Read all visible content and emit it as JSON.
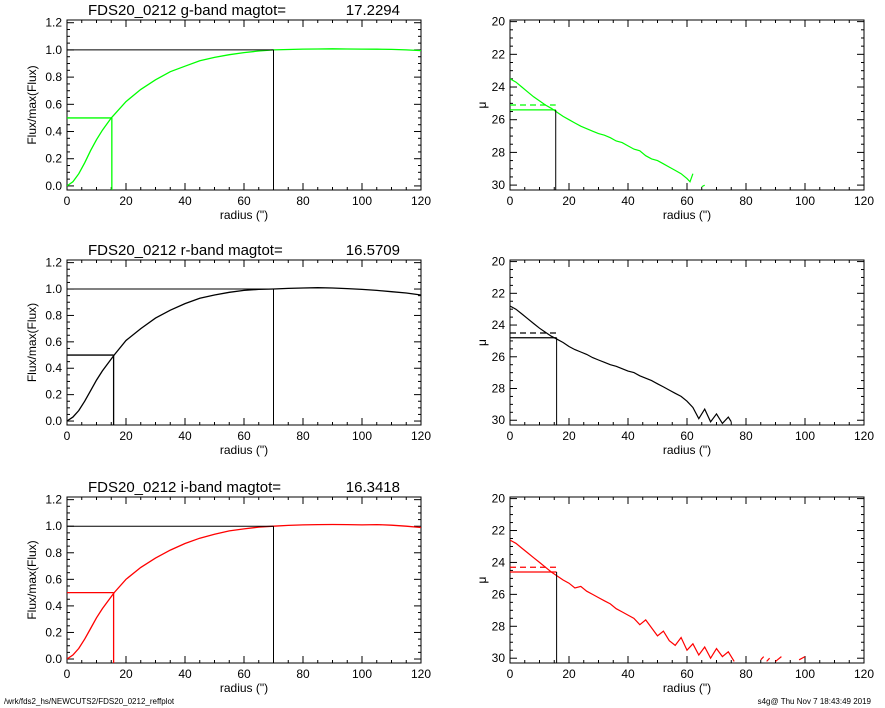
{
  "chart_data": [
    {
      "type": "line",
      "title_name": "FDS20_0212 g-band  magtot=",
      "title_value": "17.2294",
      "xlabel": "radius (\")",
      "ylabel": "Flux/max(Flux)",
      "xlim": [
        0,
        120
      ],
      "ylim": [
        -0.03,
        1.22
      ],
      "xticks": [
        "0",
        "20",
        "40",
        "60",
        "80",
        "100",
        "120"
      ],
      "yticks": [
        "0.0",
        "0.2",
        "0.4",
        "0.6",
        "0.8",
        "1.0",
        "1.2"
      ],
      "color": "#00ff00",
      "curve_x": [
        0,
        2,
        4,
        6,
        8,
        10,
        12,
        15,
        20,
        25,
        30,
        35,
        40,
        45,
        50,
        55,
        60,
        65,
        70,
        75,
        80,
        85,
        90,
        95,
        100,
        105,
        110,
        115,
        120
      ],
      "curve_y": [
        0.0,
        0.03,
        0.09,
        0.17,
        0.26,
        0.34,
        0.41,
        0.5,
        0.62,
        0.71,
        0.78,
        0.84,
        0.88,
        0.92,
        0.945,
        0.965,
        0.98,
        0.992,
        1.0,
        1.003,
        1.006,
        1.007,
        1.008,
        1.007,
        1.006,
        1.005,
        1.004,
        1.0,
        0.995
      ],
      "r_half": 15.2,
      "half_flux": 0.5,
      "r_total": 70,
      "total_flux": 1.0
    },
    {
      "type": "line",
      "xlabel": "radius (\")",
      "ylabel": "μ",
      "xlim": [
        0,
        120
      ],
      "ylim": [
        30.3,
        19.9
      ],
      "xticks": [
        "0",
        "20",
        "40",
        "60",
        "80",
        "100",
        "120"
      ],
      "yticks": [
        "20",
        "22",
        "24",
        "26",
        "28",
        "30"
      ],
      "color": "#00ff00",
      "profile_x": [
        0,
        2,
        4,
        6,
        8,
        10,
        12,
        14,
        16,
        18,
        20,
        22,
        24,
        26,
        28,
        30,
        32,
        34,
        36,
        38,
        40,
        42,
        44,
        46,
        48,
        50,
        52,
        54,
        56,
        58,
        60,
        61,
        62
      ],
      "profile_y": [
        23.5,
        23.7,
        24.0,
        24.3,
        24.6,
        24.85,
        25.1,
        25.3,
        25.55,
        25.8,
        26.0,
        26.2,
        26.4,
        26.55,
        26.7,
        26.85,
        26.95,
        27.1,
        27.3,
        27.4,
        27.6,
        27.8,
        27.9,
        28.2,
        28.4,
        28.5,
        28.7,
        28.9,
        29.1,
        29.3,
        29.6,
        29.8,
        29.3
      ],
      "profile_tail_x": [
        65,
        66
      ],
      "profile_tail_y": [
        30.1,
        30.0
      ],
      "r_half": 15.5,
      "mu_half": 25.4,
      "mu_mean_half": 25.1
    },
    {
      "type": "line",
      "title_name": "FDS20_0212 r-band  magtot=",
      "title_value": "16.5709",
      "xlabel": "radius (\")",
      "ylabel": "Flux/max(Flux)",
      "xlim": [
        0,
        120
      ],
      "ylim": [
        -0.03,
        1.22
      ],
      "xticks": [
        "0",
        "20",
        "40",
        "60",
        "80",
        "100",
        "120"
      ],
      "yticks": [
        "0.0",
        "0.2",
        "0.4",
        "0.6",
        "0.8",
        "1.0",
        "1.2"
      ],
      "color": "#000000",
      "curve_x": [
        0,
        2,
        4,
        6,
        8,
        10,
        12,
        16,
        20,
        25,
        30,
        35,
        40,
        45,
        50,
        55,
        60,
        65,
        70,
        75,
        80,
        85,
        90,
        95,
        100,
        105,
        110,
        115,
        120
      ],
      "curve_y": [
        0.0,
        0.03,
        0.08,
        0.15,
        0.23,
        0.31,
        0.38,
        0.5,
        0.61,
        0.7,
        0.78,
        0.84,
        0.89,
        0.93,
        0.955,
        0.975,
        0.99,
        0.997,
        1.0,
        1.005,
        1.008,
        1.01,
        1.008,
        1.003,
        0.997,
        0.99,
        0.98,
        0.97,
        0.955
      ],
      "r_half": 15.8,
      "half_flux": 0.5,
      "r_total": 70,
      "total_flux": 1.0
    },
    {
      "type": "line",
      "xlabel": "radius (\")",
      "ylabel": "μ",
      "xlim": [
        0,
        120
      ],
      "ylim": [
        30.3,
        19.9
      ],
      "xticks": [
        "0",
        "20",
        "40",
        "60",
        "80",
        "100",
        "120"
      ],
      "yticks": [
        "20",
        "22",
        "24",
        "26",
        "28",
        "30"
      ],
      "color": "#000000",
      "profile_x": [
        0,
        2,
        4,
        6,
        8,
        10,
        12,
        14,
        16,
        18,
        20,
        22,
        24,
        26,
        28,
        30,
        32,
        34,
        36,
        38,
        40,
        42,
        44,
        46,
        48,
        50,
        52,
        54,
        56,
        58,
        60,
        62,
        64,
        66,
        68,
        70,
        72,
        74,
        75
      ],
      "profile_y": [
        22.8,
        23.0,
        23.3,
        23.6,
        23.9,
        24.2,
        24.45,
        24.7,
        24.9,
        25.1,
        25.35,
        25.55,
        25.7,
        25.85,
        26.05,
        26.2,
        26.35,
        26.5,
        26.6,
        26.75,
        26.9,
        27.0,
        27.2,
        27.35,
        27.5,
        27.7,
        27.9,
        28.1,
        28.3,
        28.5,
        28.8,
        29.2,
        29.9,
        29.3,
        30.1,
        29.6,
        30.2,
        29.8,
        30.1
      ],
      "profile_tail_x": [],
      "profile_tail_y": [],
      "r_half": 15.8,
      "mu_half": 24.8,
      "mu_mean_half": 24.5
    },
    {
      "type": "line",
      "title_name": "FDS20_0212 i-band  magtot=",
      "title_value": "16.3418",
      "xlabel": "radius (\")",
      "ylabel": "Flux/max(Flux)",
      "xlim": [
        0,
        120
      ],
      "ylim": [
        -0.03,
        1.22
      ],
      "xticks": [
        "0",
        "20",
        "40",
        "60",
        "80",
        "100",
        "120"
      ],
      "yticks": [
        "0.0",
        "0.2",
        "0.4",
        "0.6",
        "0.8",
        "1.0",
        "1.2"
      ],
      "color": "#ff0000",
      "curve_x": [
        0,
        2,
        4,
        6,
        8,
        10,
        12,
        16,
        20,
        25,
        30,
        35,
        40,
        45,
        50,
        55,
        60,
        65,
        70,
        75,
        80,
        85,
        90,
        95,
        100,
        105,
        110,
        115,
        120
      ],
      "curve_y": [
        0.0,
        0.03,
        0.08,
        0.15,
        0.23,
        0.31,
        0.38,
        0.5,
        0.6,
        0.69,
        0.76,
        0.82,
        0.87,
        0.91,
        0.94,
        0.965,
        0.98,
        0.993,
        1.0,
        1.006,
        1.01,
        1.012,
        1.013,
        1.012,
        1.01,
        1.012,
        1.008,
        1.0,
        0.99
      ],
      "r_half": 15.8,
      "half_flux": 0.5,
      "r_total": 70,
      "total_flux": 1.0
    },
    {
      "type": "line",
      "xlabel": "radius (\")",
      "ylabel": "μ",
      "xlim": [
        0,
        120
      ],
      "ylim": [
        30.3,
        19.9
      ],
      "xticks": [
        "0",
        "20",
        "40",
        "60",
        "80",
        "100",
        "120"
      ],
      "yticks": [
        "20",
        "22",
        "24",
        "26",
        "28",
        "30"
      ],
      "color": "#ff0000",
      "profile_x": [
        0,
        2,
        4,
        6,
        8,
        10,
        12,
        14,
        16,
        18,
        20,
        22,
        24,
        26,
        28,
        30,
        32,
        34,
        36,
        38,
        40,
        42,
        44,
        46,
        48,
        50,
        52,
        54,
        56,
        58,
        60,
        62,
        64,
        66,
        68,
        70,
        72,
        74,
        76
      ],
      "profile_y": [
        22.6,
        22.8,
        23.1,
        23.4,
        23.7,
        24.0,
        24.3,
        24.6,
        24.85,
        25.1,
        25.3,
        25.6,
        25.5,
        25.8,
        26.0,
        26.2,
        26.4,
        26.6,
        26.9,
        27.1,
        27.3,
        27.5,
        27.9,
        27.6,
        28.1,
        28.6,
        28.3,
        28.9,
        29.2,
        28.7,
        29.5,
        29.1,
        29.8,
        29.3,
        30.0,
        29.4,
        29.9,
        29.6,
        30.2
      ],
      "profile_tail_x": [
        85,
        86,
        87,
        88,
        90,
        92,
        98,
        100,
        104
      ],
      "profile_tail_y": [
        30.1,
        29.9,
        30.2,
        30.0,
        30.2,
        29.9,
        30.1,
        29.9,
        30.2
      ],
      "r_half": 15.8,
      "mu_half": 24.6,
      "mu_mean_half": 24.3
    }
  ],
  "footer": {
    "left": "/wrk/fds2_hs/NEWCUTS2/FDS20_0212_reffplot",
    "right": "s4g@  Thu Nov  7 18:43:49 2019"
  }
}
